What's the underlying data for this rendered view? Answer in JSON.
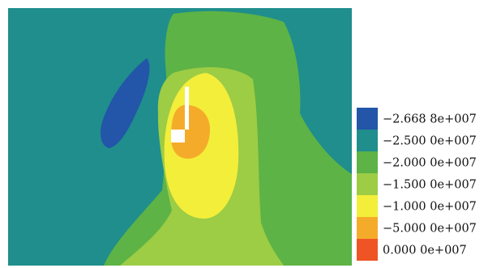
{
  "chart_data": {
    "type": "heatmap",
    "title": "",
    "xlabel": "",
    "ylabel": "",
    "legend": {
      "placement": "right",
      "entries": [
        {
          "label": "−2.668 8e+007",
          "value": -26688000,
          "color": "#2355a9"
        },
        {
          "label": "−2.500 0e+007",
          "value": -25000000,
          "color": "#1f8e8c"
        },
        {
          "label": "−2.000 0e+007",
          "value": -20000000,
          "color": "#5db345"
        },
        {
          "label": "−1.500 0e+007",
          "value": -15000000,
          "color": "#9dcc45"
        },
        {
          "label": "−1.000 0e+007",
          "value": -10000000,
          "color": "#f3ee3a"
        },
        {
          "label": "−5.000 0e+007",
          "value": -50000000,
          "color": "#f5ab2a"
        },
        {
          "label": "0.000 0e+007",
          "value": 0,
          "color": "#ef5425"
        }
      ]
    }
  }
}
